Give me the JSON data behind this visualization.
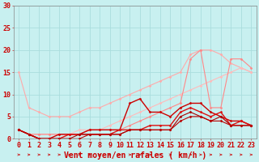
{
  "background_color": "#c8f0f0",
  "grid_color": "#aadddd",
  "xlabel": "Vent moyen/en rafales ( km/h )",
  "xlabel_color": "#cc0000",
  "xlabel_fontsize": 7,
  "tick_color": "#cc0000",
  "tick_fontsize": 6,
  "xlim": [
    -0.5,
    23.5
  ],
  "ylim": [
    0,
    30
  ],
  "yticks": [
    0,
    5,
    10,
    15,
    20,
    25,
    30
  ],
  "xticks": [
    0,
    1,
    2,
    3,
    4,
    5,
    6,
    7,
    8,
    9,
    10,
    11,
    12,
    13,
    14,
    15,
    16,
    17,
    18,
    19,
    20,
    21,
    22,
    23
  ],
  "series": [
    {
      "x": [
        0,
        1,
        2,
        3,
        4,
        5,
        6,
        7,
        8,
        9,
        10,
        11,
        12,
        13,
        14,
        15,
        16,
        17,
        18,
        19,
        20,
        21,
        22,
        23
      ],
      "y": [
        15,
        7,
        6,
        5,
        5,
        5,
        6,
        7,
        7,
        8,
        9,
        10,
        11,
        12,
        13,
        14,
        15,
        19,
        20,
        20,
        19,
        17,
        16,
        15
      ],
      "color": "#ffaaaa",
      "linewidth": 0.8,
      "marker": "D",
      "markersize": 1.5
    },
    {
      "x": [
        0,
        1,
        2,
        3,
        4,
        5,
        6,
        7,
        8,
        9,
        10,
        11,
        12,
        13,
        14,
        15,
        16,
        17,
        18,
        19,
        20,
        21,
        22,
        23
      ],
      "y": [
        2,
        1,
        1,
        1,
        1,
        1,
        2,
        2,
        2,
        3,
        4,
        5,
        6,
        7,
        8,
        9,
        10,
        11,
        12,
        13,
        14,
        15,
        16,
        15
      ],
      "color": "#ffbbbb",
      "linewidth": 0.8,
      "marker": "D",
      "markersize": 1.5
    },
    {
      "x": [
        0,
        1,
        2,
        3,
        4,
        5,
        6,
        7,
        8,
        9,
        10,
        11,
        12,
        13,
        14,
        15,
        16,
        17,
        18,
        19,
        20,
        21,
        22,
        23
      ],
      "y": [
        2,
        1,
        1,
        1,
        1,
        1,
        1,
        2,
        2,
        2,
        2,
        3,
        4,
        5,
        6,
        7,
        8,
        18,
        20,
        7,
        7,
        18,
        18,
        16
      ],
      "color": "#ff8888",
      "linewidth": 0.8,
      "marker": "D",
      "markersize": 1.5
    },
    {
      "x": [
        0,
        1,
        2,
        3,
        4,
        5,
        6,
        7,
        8,
        9,
        10,
        11,
        12,
        13,
        14,
        15,
        16,
        17,
        18,
        19,
        20,
        21,
        22,
        23
      ],
      "y": [
        2,
        1,
        0,
        0,
        1,
        1,
        1,
        2,
        2,
        2,
        2,
        8,
        9,
        6,
        6,
        5,
        7,
        8,
        8,
        6,
        5,
        4,
        4,
        3
      ],
      "color": "#cc0000",
      "linewidth": 1.0,
      "marker": "D",
      "markersize": 1.5
    },
    {
      "x": [
        0,
        1,
        2,
        3,
        4,
        5,
        6,
        7,
        8,
        9,
        10,
        11,
        12,
        13,
        14,
        15,
        16,
        17,
        18,
        19,
        20,
        21,
        22,
        23
      ],
      "y": [
        2,
        1,
        0,
        0,
        0,
        1,
        1,
        1,
        1,
        1,
        2,
        2,
        2,
        3,
        3,
        3,
        6,
        7,
        6,
        5,
        6,
        3,
        4,
        3
      ],
      "color": "#dd1111",
      "linewidth": 1.0,
      "marker": "D",
      "markersize": 1.5
    },
    {
      "x": [
        0,
        1,
        2,
        3,
        4,
        5,
        6,
        7,
        8,
        9,
        10,
        11,
        12,
        13,
        14,
        15,
        16,
        17,
        18,
        19,
        20,
        21,
        22,
        23
      ],
      "y": [
        2,
        1,
        0,
        0,
        0,
        0,
        1,
        1,
        1,
        1,
        1,
        2,
        2,
        2,
        2,
        2,
        5,
        6,
        5,
        4,
        5,
        3,
        3,
        3
      ],
      "color": "#aa0000",
      "linewidth": 0.8,
      "marker": "D",
      "markersize": 1.5
    },
    {
      "x": [
        0,
        1,
        2,
        3,
        4,
        5,
        6,
        7,
        8,
        9,
        10,
        11,
        12,
        13,
        14,
        15,
        16,
        17,
        18,
        19,
        20,
        21,
        22,
        23
      ],
      "y": [
        2,
        1,
        0,
        0,
        0,
        0,
        0,
        1,
        1,
        1,
        1,
        2,
        2,
        2,
        2,
        2,
        4,
        5,
        5,
        4,
        4,
        3,
        3,
        3
      ],
      "color": "#bb0000",
      "linewidth": 0.8,
      "marker": "D",
      "markersize": 1.5
    }
  ],
  "arrow_color": "#cc0000"
}
